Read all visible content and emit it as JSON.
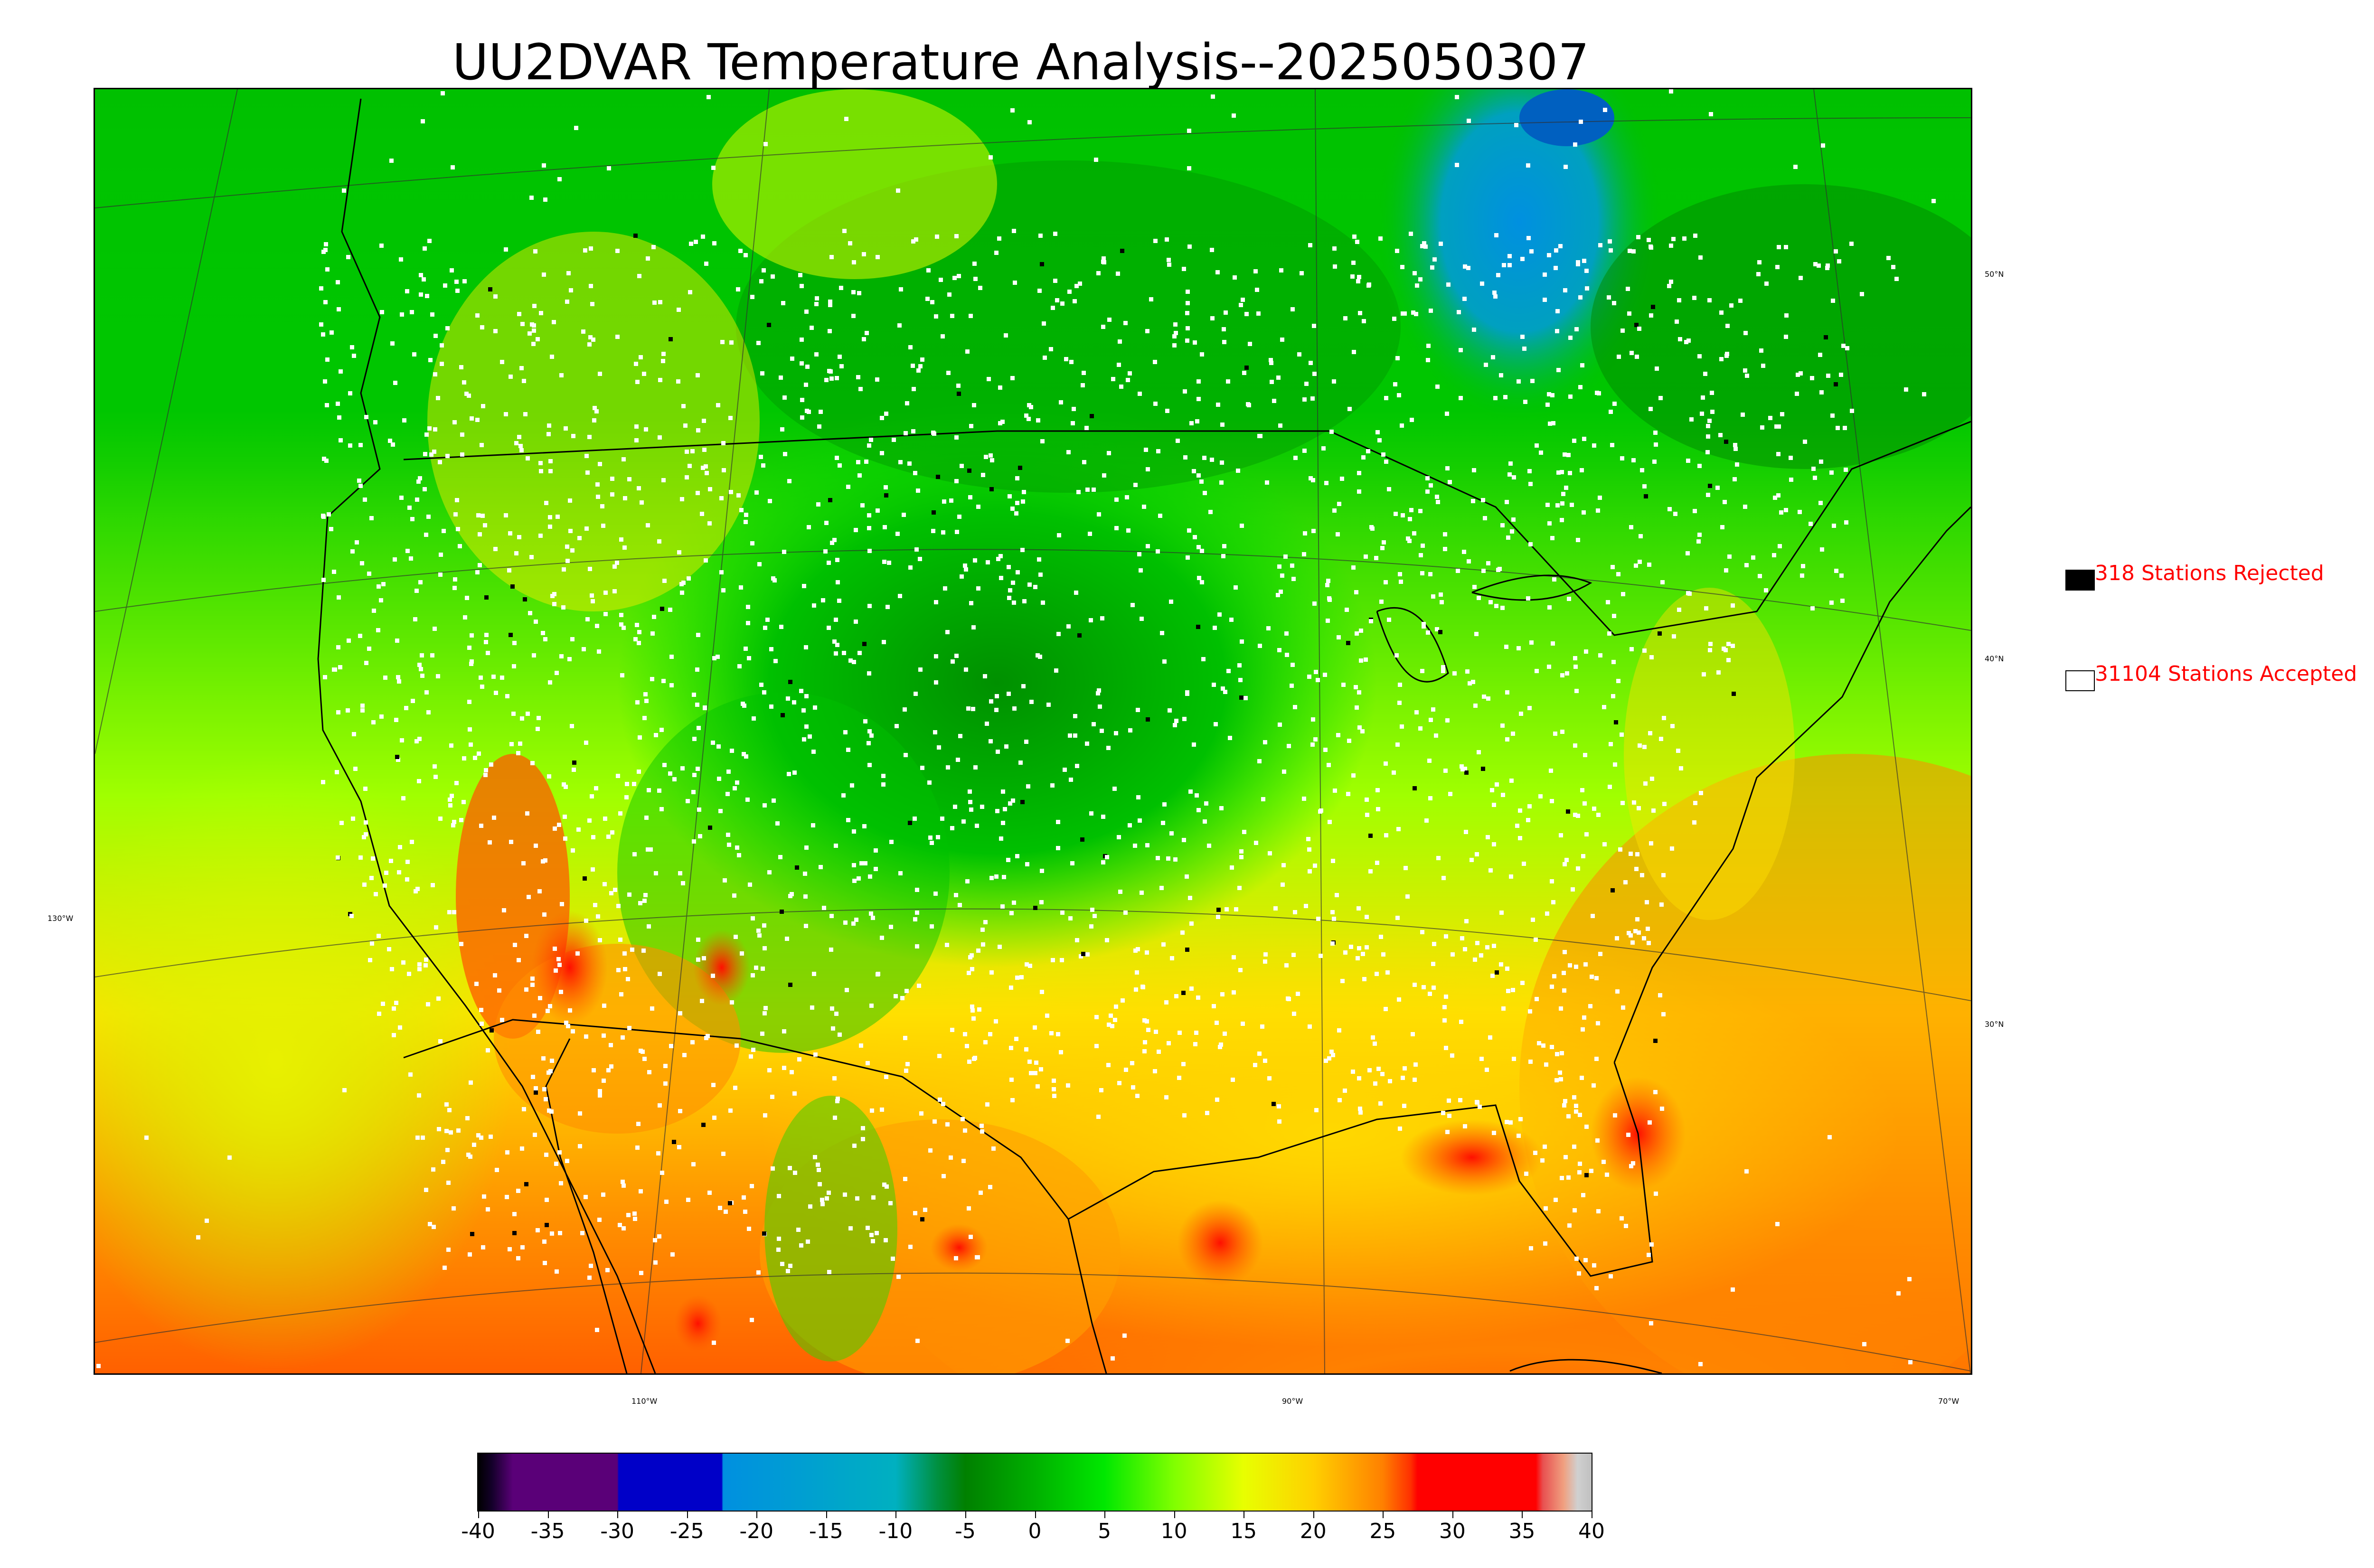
{
  "title": "UU2DVAR Temperature Analysis--2025050307",
  "map": {
    "lat_labels": [
      "50°N",
      "40°N",
      "30°N"
    ],
    "lon_labels_bottom": [
      "110°W",
      "90°W",
      "70°W"
    ],
    "lon_label_left": "130°W"
  },
  "legend": {
    "rejected": {
      "count_label": "318 Stations Rejected",
      "swatch_color": "#000000"
    },
    "accepted": {
      "count_label": "31104 Stations Accepted",
      "swatch_color": "#ffffff"
    }
  },
  "colorbar": {
    "ticks": [
      "-40",
      "-35",
      "-30",
      "-25",
      "-20",
      "-15",
      "-10",
      "-5",
      "0",
      "5",
      "10",
      "15",
      "20",
      "25",
      "30",
      "35",
      "40"
    ],
    "min": -40,
    "max": 40,
    "stops": [
      {
        "v": -40,
        "c": "#000000"
      },
      {
        "v": -39,
        "c": "#14002a"
      },
      {
        "v": -37.5,
        "c": "#5a0078"
      },
      {
        "v": -30,
        "c": "#5a0078"
      },
      {
        "v": -29.9,
        "c": "#0000c8"
      },
      {
        "v": -22.5,
        "c": "#0000c8"
      },
      {
        "v": -22.4,
        "c": "#0090e0"
      },
      {
        "v": -10,
        "c": "#00b0c0"
      },
      {
        "v": -7,
        "c": "#009040"
      },
      {
        "v": -5,
        "c": "#008000"
      },
      {
        "v": 0,
        "c": "#00b000"
      },
      {
        "v": 5,
        "c": "#00e800"
      },
      {
        "v": 10,
        "c": "#80ff00"
      },
      {
        "v": 15,
        "c": "#e8ff00"
      },
      {
        "v": 20,
        "c": "#ffd000"
      },
      {
        "v": 25,
        "c": "#ff8000"
      },
      {
        "v": 27,
        "c": "#ff3000"
      },
      {
        "v": 27.5,
        "c": "#ff0000"
      },
      {
        "v": 36,
        "c": "#ff0000"
      },
      {
        "v": 36.5,
        "c": "#e85050"
      },
      {
        "v": 38,
        "c": "#f0a080"
      },
      {
        "v": 39,
        "c": "#d0d0d0"
      },
      {
        "v": 40,
        "c": "#c0c0c0"
      }
    ]
  }
}
